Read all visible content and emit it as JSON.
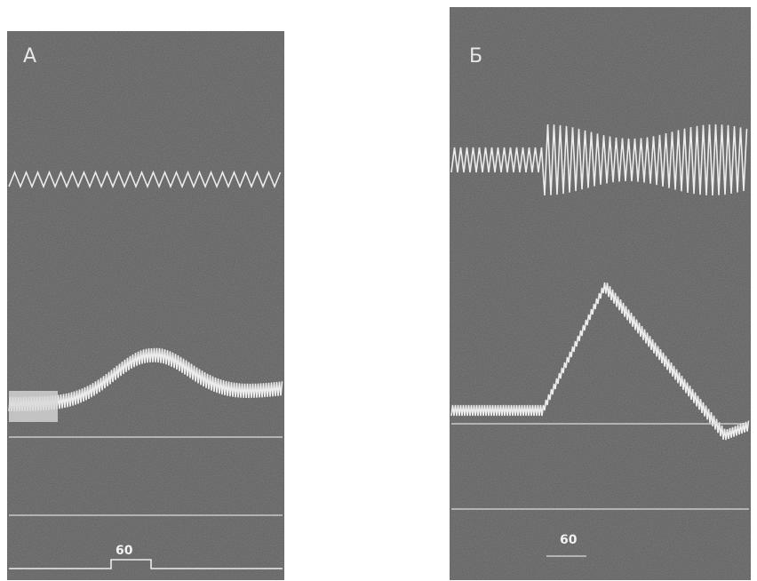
{
  "panels": [
    {
      "label": "А",
      "scale_label": "60"
    },
    {
      "label": "Б",
      "scale_label": "60"
    }
  ]
}
